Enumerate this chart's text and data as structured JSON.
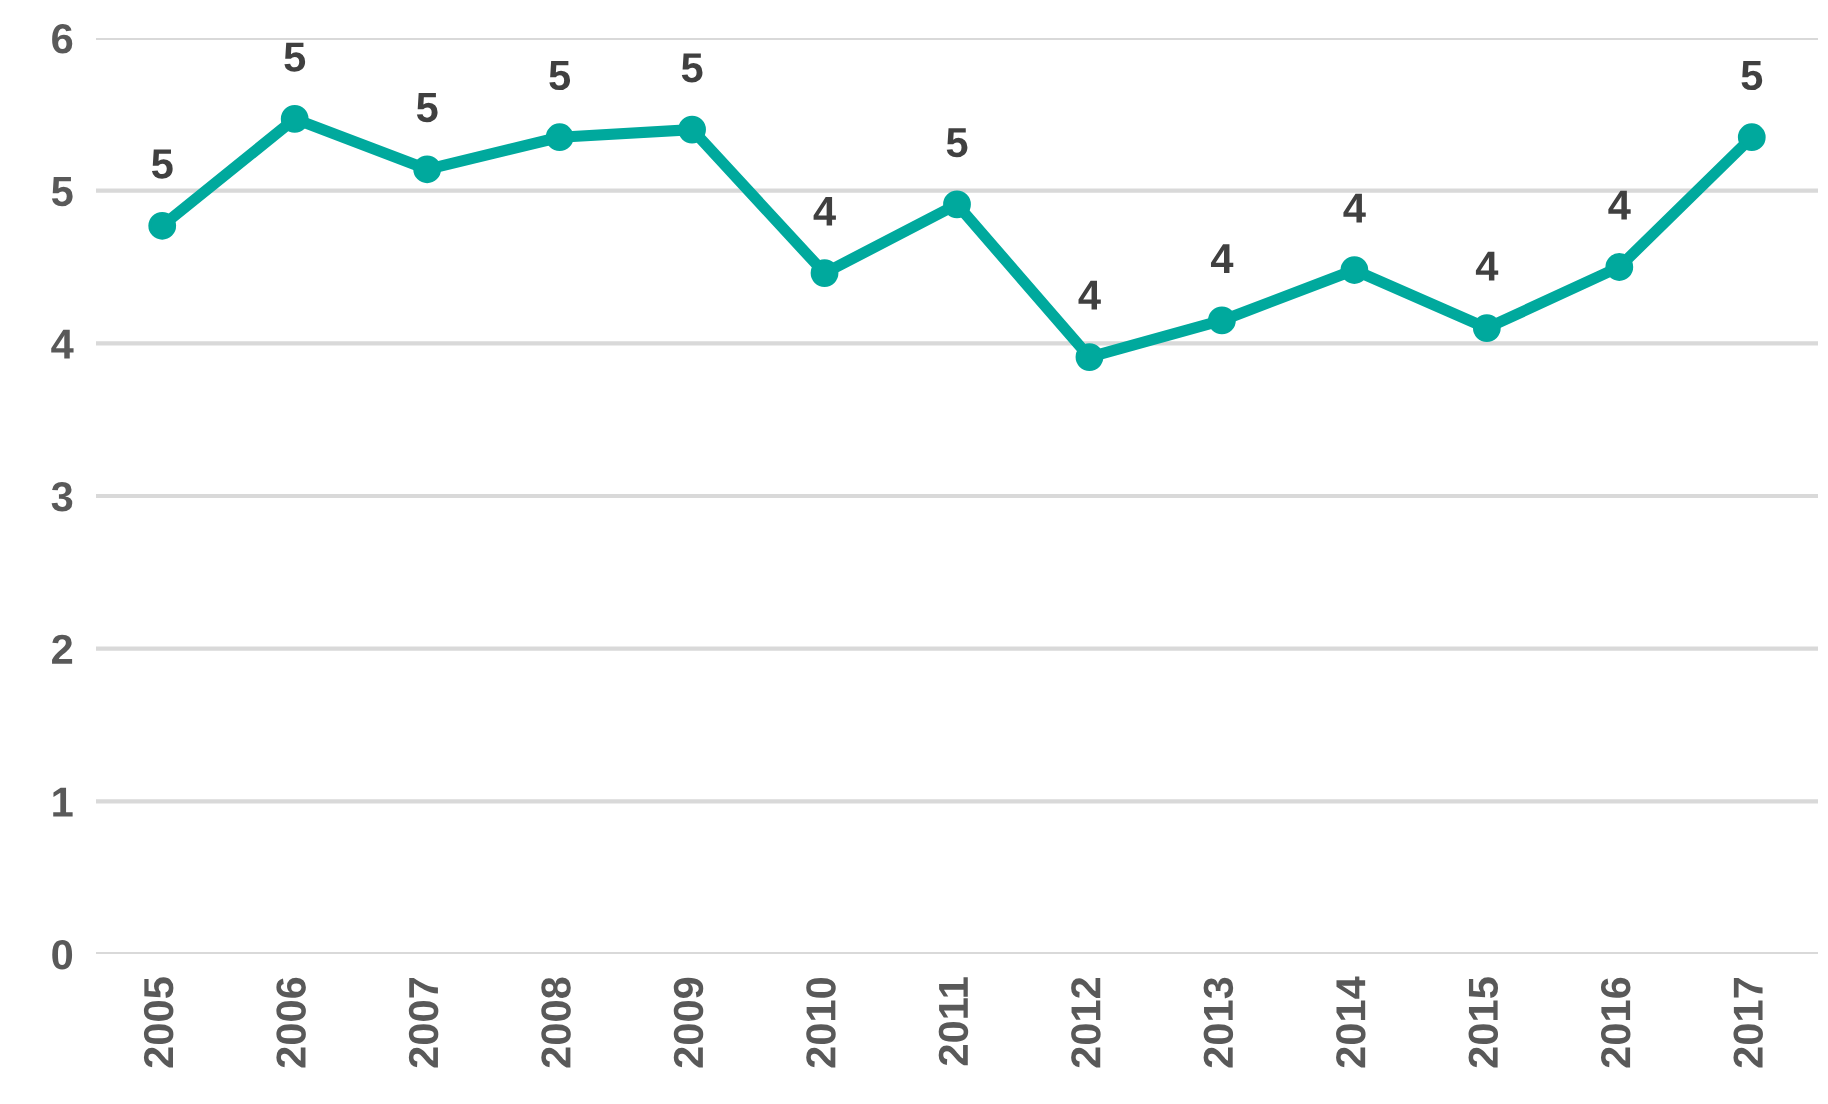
{
  "chart_data": {
    "type": "line",
    "categories": [
      "2005",
      "2006",
      "2007",
      "2008",
      "2009",
      "2010",
      "2011",
      "2012",
      "2013",
      "2014",
      "2015",
      "2016",
      "2017"
    ],
    "series": [
      {
        "color": "#00a99d",
        "values": [
          4.77,
          5.47,
          5.14,
          5.35,
          5.4,
          4.46,
          4.91,
          3.91,
          4.15,
          4.48,
          4.1,
          4.5,
          5.35
        ],
        "value_labels": [
          "5",
          "5",
          "5",
          "5",
          "5",
          "4",
          "5",
          "4",
          "4",
          "4",
          "4",
          "4",
          "5"
        ]
      }
    ],
    "ylim": [
      0,
      6
    ],
    "yticks": [
      0,
      1,
      2,
      3,
      4,
      5,
      6
    ],
    "grid": "y",
    "marker": "circle",
    "line_style": "solid",
    "legend": false
  }
}
